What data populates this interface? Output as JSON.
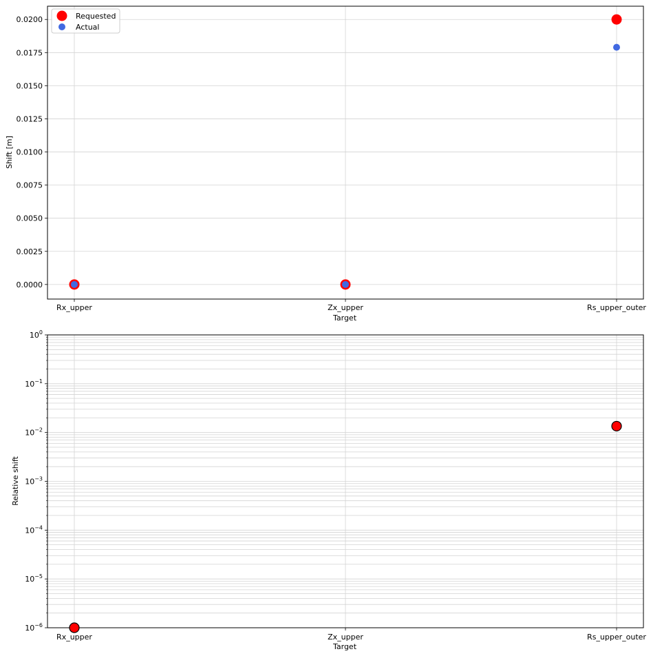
{
  "chart_data": [
    {
      "type": "scatter",
      "title": "",
      "xlabel": "Target",
      "ylabel": "Shift [m]",
      "categories": [
        "Rx_upper",
        "Zx_upper",
        "Rs_upper_outer"
      ],
      "ylim": [
        -0.0011,
        0.021
      ],
      "yticks": [
        0.0,
        0.0025,
        0.005,
        0.0075,
        0.01,
        0.0125,
        0.015,
        0.0175,
        0.02
      ],
      "ytick_labels": [
        "0.0000",
        "0.0025",
        "0.0050",
        "0.0075",
        "0.0100",
        "0.0125",
        "0.0150",
        "0.0175",
        "0.0200"
      ],
      "grid": true,
      "legend": "top-left",
      "series": [
        {
          "name": "Requested",
          "values": [
            0.0,
            0.0,
            0.02
          ],
          "color": "#ff0000"
        },
        {
          "name": "Actual",
          "values": [
            0.0,
            0.0,
            0.0179
          ],
          "color": "#4169e1"
        }
      ]
    },
    {
      "type": "scatter",
      "title": "",
      "xlabel": "Target",
      "ylabel": "Relative shift",
      "yscale": "log",
      "categories": [
        "Rx_upper",
        "Zx_upper",
        "Rs_upper_outer"
      ],
      "ylim": [
        1e-06,
        1
      ],
      "ytick_labels": [
        {
          "base": "10",
          "exp": "−6"
        },
        {
          "base": "10",
          "exp": "−5"
        },
        {
          "base": "10",
          "exp": "−4"
        },
        {
          "base": "10",
          "exp": "−3"
        },
        {
          "base": "10",
          "exp": "−2"
        },
        {
          "base": "10",
          "exp": "−1"
        },
        {
          "base": "10",
          "exp": "0"
        }
      ],
      "grid": true,
      "values": [
        1e-06,
        null,
        0.0135
      ],
      "color": "#ff0000",
      "edgecolor": "#000000"
    }
  ]
}
